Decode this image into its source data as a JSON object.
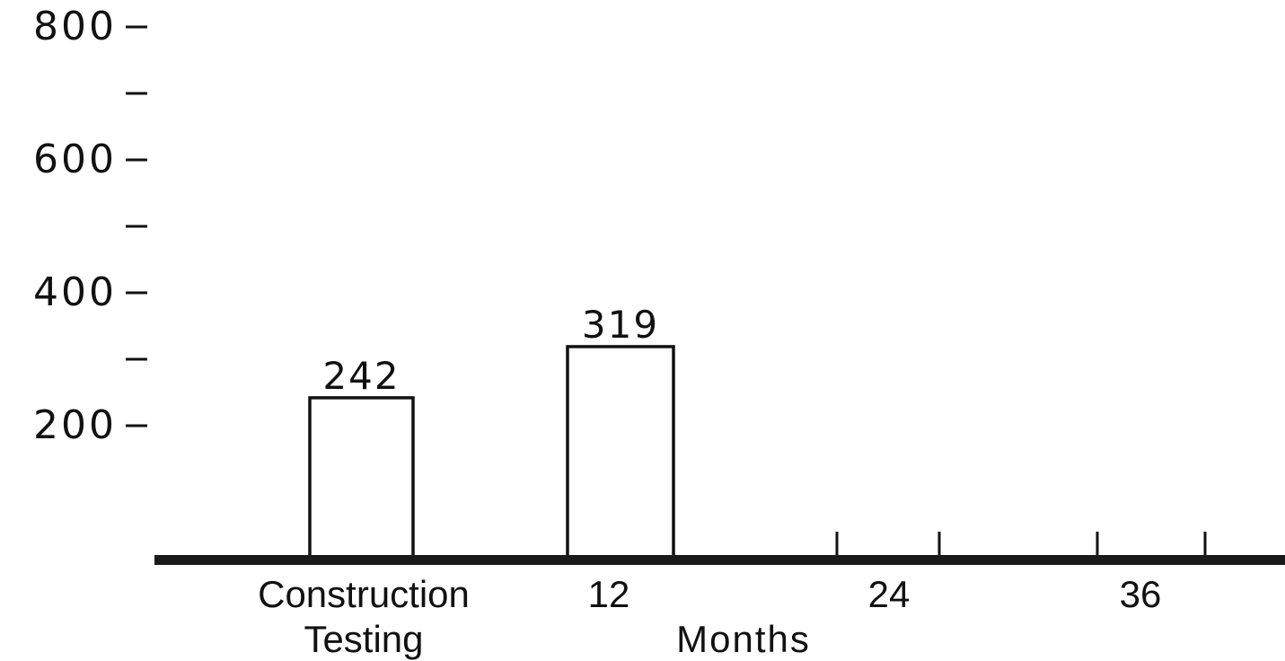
{
  "chart_data": {
    "type": "bar",
    "categories": [
      "Construction\nTesting",
      "12",
      "24",
      "36"
    ],
    "values": [
      242,
      319,
      null,
      null
    ],
    "data_labels": [
      "242",
      "319",
      "",
      ""
    ],
    "title": "",
    "xlabel": "Months",
    "ylabel": "",
    "ylim": [
      0,
      800
    ],
    "yticks": [
      200,
      400,
      600,
      800
    ],
    "ytick_labels": [
      "200",
      "400",
      "600",
      "800"
    ],
    "minor_yticks": [
      300,
      500,
      700
    ],
    "grid": false,
    "legend": "none"
  }
}
